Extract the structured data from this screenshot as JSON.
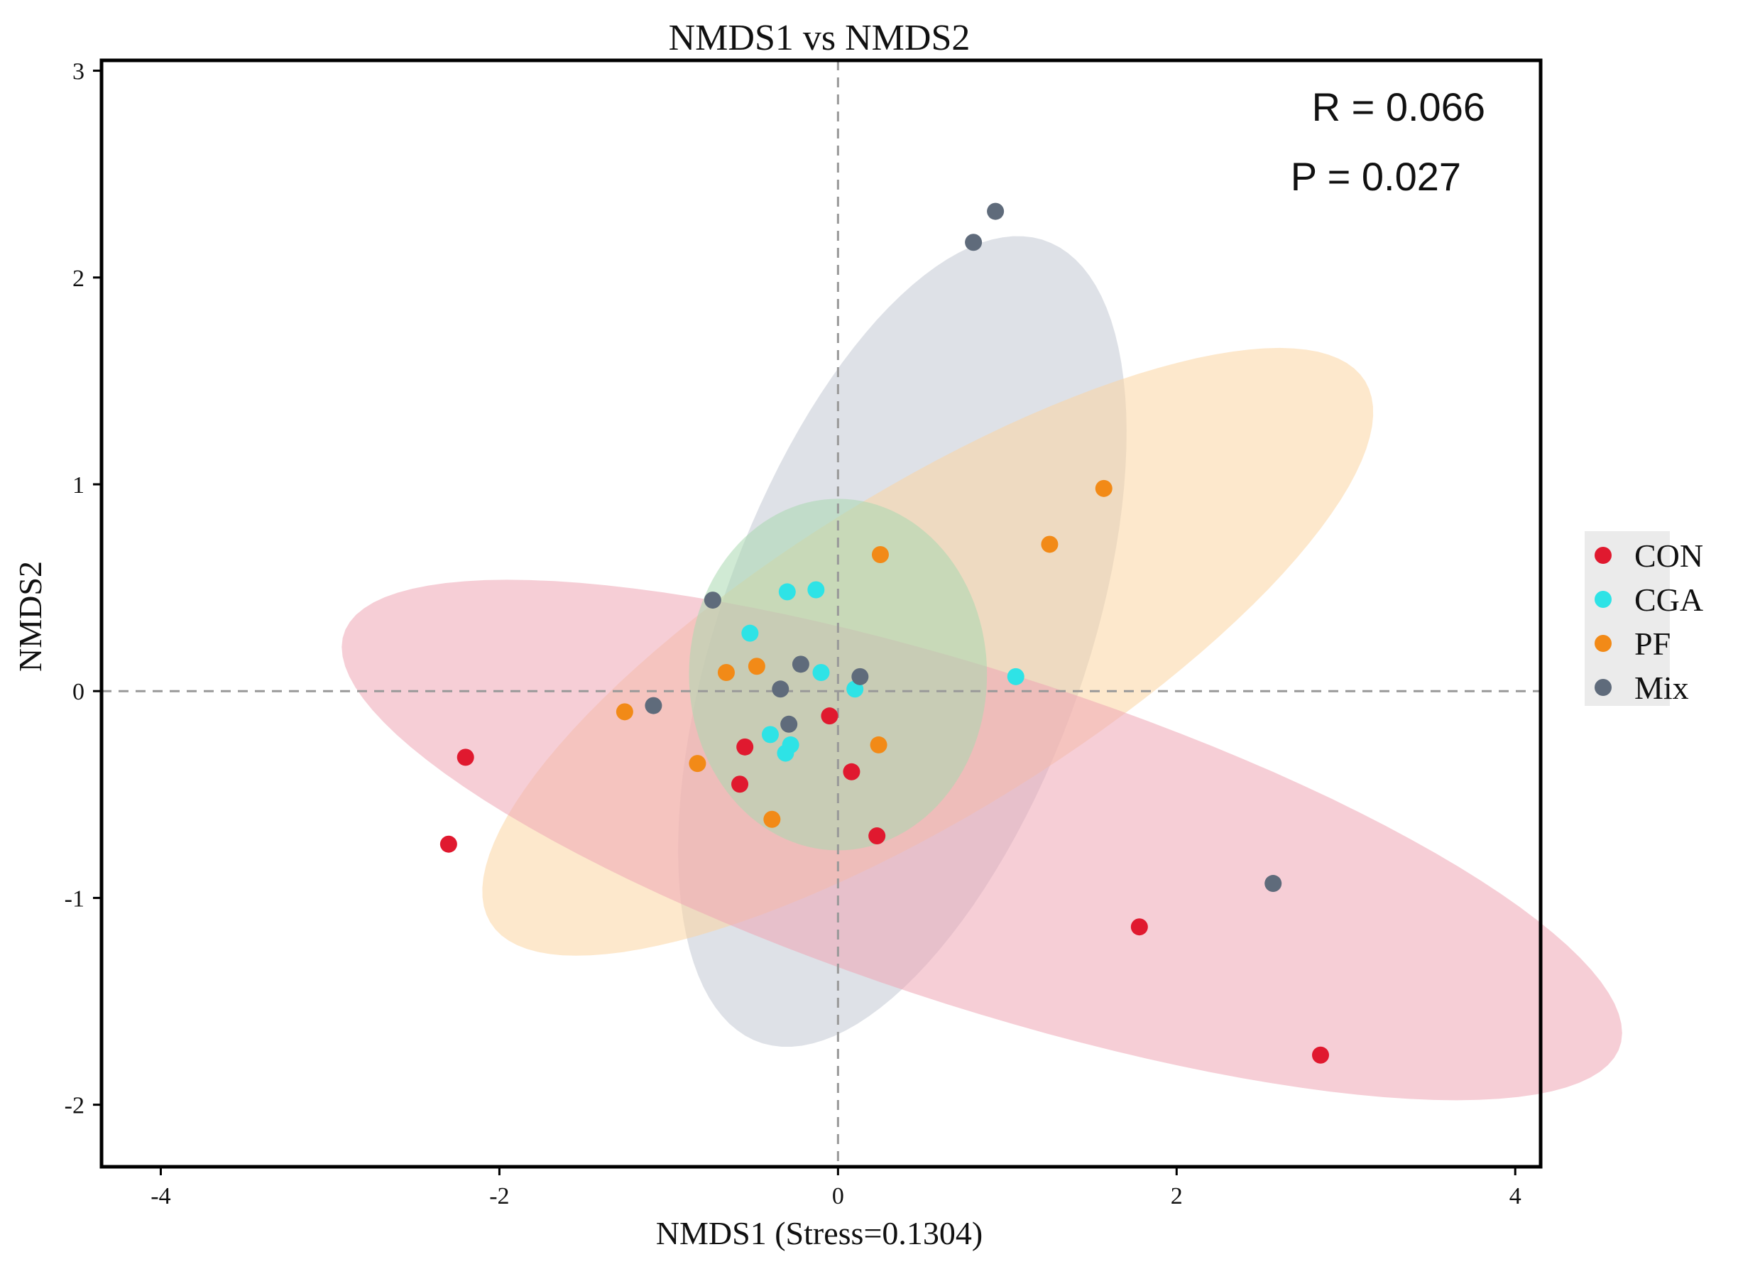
{
  "chart_data": {
    "type": "scatter",
    "title": "NMDS1 vs NMDS2",
    "xlabel": "NMDS1 (Stress=0.1304)",
    "ylabel": "NMDS2",
    "xlim": [
      -4.35,
      4.15
    ],
    "ylim": [
      -2.3,
      3.05
    ],
    "xticks": [
      -4,
      -2,
      0,
      2,
      4
    ],
    "yticks": [
      -2,
      -1,
      0,
      1,
      2,
      3
    ],
    "xtick_labels": [
      "-4",
      "-2",
      "0",
      "2",
      "4"
    ],
    "ytick_labels": [
      "-2",
      "-1",
      "0",
      "1",
      "2",
      "3"
    ],
    "reference_lines": {
      "x": 0,
      "y": 0
    },
    "annotations": {
      "r_text": "R = 0.066",
      "p_text": "P = 0.027"
    },
    "legend_position": "right",
    "series": [
      {
        "name": "CON",
        "color": "#e0192f",
        "ellipse_color": "#eea5b4",
        "ellipse": {
          "cx": 0.85,
          "cy": -0.72,
          "rx": 3.9,
          "ry": 0.82,
          "angle_deg": -14.5
        },
        "x": [
          -2.2,
          -2.3,
          -0.55,
          -0.58,
          -0.05,
          0.08,
          0.23,
          1.78,
          2.85
        ],
        "y": [
          -0.32,
          -0.74,
          -0.27,
          -0.45,
          -0.12,
          -0.39,
          -0.7,
          -1.14,
          -1.76
        ]
      },
      {
        "name": "CGA",
        "color": "#2ee3e6",
        "ellipse_color": "#a9d9b1",
        "ellipse": {
          "cx": 0.0,
          "cy": 0.08,
          "rx": 0.88,
          "ry": 0.85,
          "angle_deg": 0
        },
        "x": [
          -0.3,
          -0.13,
          -0.52,
          -0.1,
          0.1,
          -0.4,
          -0.28,
          -0.31,
          1.05
        ],
        "y": [
          0.48,
          0.49,
          0.28,
          0.09,
          0.01,
          -0.21,
          -0.26,
          -0.3,
          0.07
        ]
      },
      {
        "name": "PF",
        "color": "#f28a17",
        "ellipse_color": "#fcd6a3",
        "ellipse": {
          "cx": 0.53,
          "cy": 0.19,
          "rx": 2.9,
          "ry": 0.82,
          "angle_deg": 26
        },
        "x": [
          1.57,
          1.25,
          0.25,
          -0.48,
          -0.66,
          -1.26,
          -0.83,
          0.24,
          -0.39
        ],
        "y": [
          0.98,
          0.71,
          0.66,
          0.12,
          0.09,
          -0.1,
          -0.35,
          -0.26,
          -0.62
        ]
      },
      {
        "name": "Mix",
        "color": "#5f6b7b",
        "ellipse_color": "#c2c8d3",
        "ellipse": {
          "cx": 0.38,
          "cy": 0.24,
          "rx": 2.12,
          "ry": 1.05,
          "angle_deg": 64
        },
        "x": [
          0.93,
          0.8,
          -0.74,
          -0.22,
          -1.09,
          -0.34,
          0.13,
          -0.29,
          2.57
        ],
        "y": [
          2.32,
          2.17,
          0.44,
          0.13,
          -0.07,
          0.01,
          0.07,
          -0.16,
          -0.93
        ]
      }
    ]
  }
}
